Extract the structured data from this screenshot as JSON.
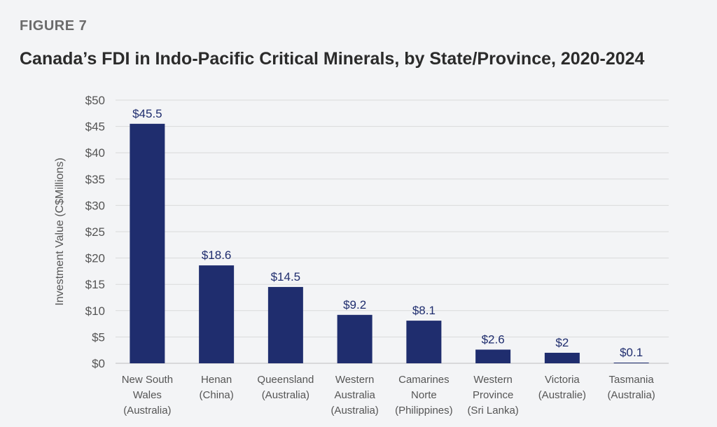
{
  "figure_label": "FIGURE 7",
  "chart_data": {
    "type": "bar",
    "title": "Canada’s FDI in Indo-Pacific Critical Minerals, by State/Province, 2020-2024",
    "xlabel": "",
    "ylabel": "Investment Value (C$Millions)",
    "ylim": [
      0,
      50
    ],
    "yticks": [
      "$0",
      "$5",
      "$10",
      "$15",
      "$20",
      "$25",
      "$30",
      "$35",
      "$40",
      "$45",
      "$50"
    ],
    "grid": true,
    "bar_color": "#1f2d6e",
    "categories": [
      [
        "New South",
        "Wales",
        "(Australia)"
      ],
      [
        "Henan",
        "(China)"
      ],
      [
        "Queensland",
        "(Australia)"
      ],
      [
        "Western",
        "Australia",
        "(Australia)"
      ],
      [
        "Camarines",
        "Norte",
        "(Philippines)"
      ],
      [
        "Western",
        "Province",
        "(Sri Lanka)"
      ],
      [
        "Victoria",
        "(Australie)"
      ],
      [
        "Tasmania",
        "(Australia)"
      ]
    ],
    "values": [
      45.5,
      18.6,
      14.5,
      9.2,
      8.1,
      2.6,
      2,
      0.1
    ],
    "data_labels": [
      "$45.5",
      "$18.6",
      "$14.5",
      "$9.2",
      "$8.1",
      "$2.6",
      "$2",
      "$0.1"
    ]
  }
}
